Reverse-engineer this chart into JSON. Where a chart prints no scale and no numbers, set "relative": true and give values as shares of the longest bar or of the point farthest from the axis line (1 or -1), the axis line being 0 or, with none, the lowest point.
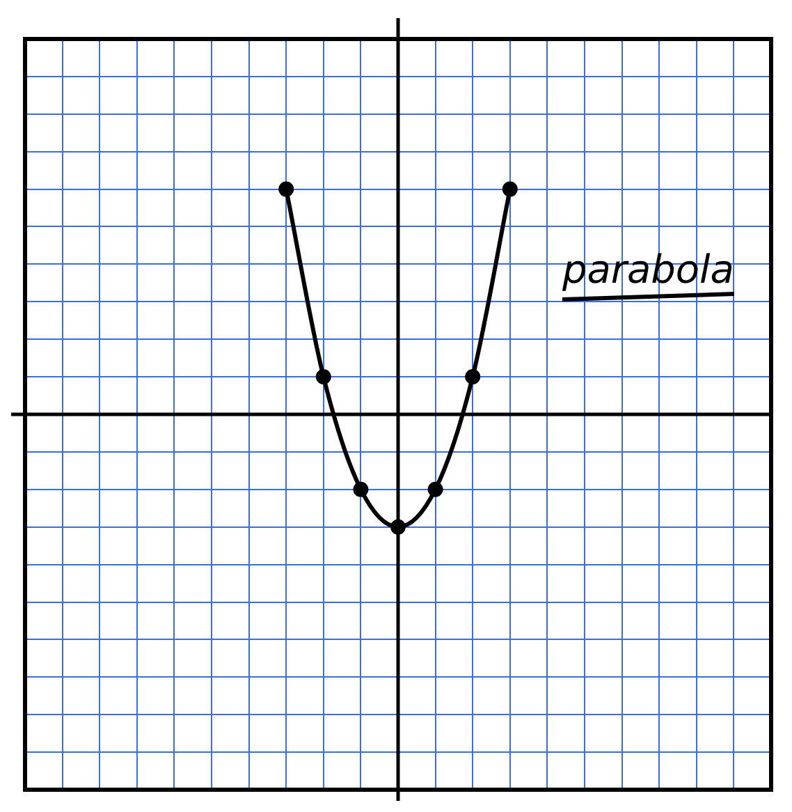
{
  "chart_data": {
    "type": "line",
    "relative": true,
    "categories": [
      null,
      null,
      null,
      null,
      null,
      null,
      null,
      null,
      null,
      null,
      null,
      null,
      null,
      null,
      null,
      null,
      null,
      null,
      null,
      null,
      null
    ],
    "series": [
      {
        "color": "#000000",
        "values": [
          null,
          null,
          null,
          null,
          null,
          null,
          null,
          1,
          0.167,
          -0.333,
          -0.5,
          -0.333,
          0.167,
          1,
          null,
          null,
          null,
          null,
          null,
          null,
          null
        ]
      }
    ],
    "annotations": [
      "parabola"
    ],
    "grid": true,
    "legend": false,
    "marker": "circle",
    "line_style": "solid"
  }
}
